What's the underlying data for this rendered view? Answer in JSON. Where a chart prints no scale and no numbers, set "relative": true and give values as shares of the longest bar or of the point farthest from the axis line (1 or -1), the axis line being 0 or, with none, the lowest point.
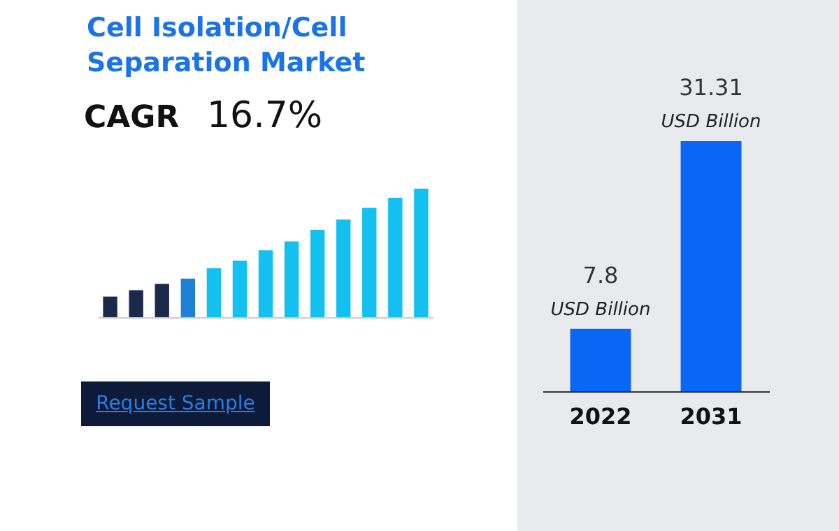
{
  "chart_data": [
    {
      "type": "bar",
      "title": "Cell Isolation/Cell Separation Market",
      "relative": true,
      "categories": [
        null,
        null,
        null,
        null,
        null,
        null,
        null,
        null,
        null,
        null,
        null,
        null,
        null
      ],
      "values": [
        0.16,
        0.21,
        0.26,
        0.3,
        0.38,
        0.44,
        0.52,
        0.59,
        0.68,
        0.76,
        0.85,
        0.93,
        1
      ],
      "colors": [
        "#1c2a4a",
        "#1c2a4a",
        "#1c2a4a",
        "#1e7fd6",
        "#14c0f0",
        "#14c0f0",
        "#14c0f0",
        "#14c0f0",
        "#14c0f0",
        "#14c0f0",
        "#14c0f0",
        "#14c0f0",
        "#14c0f0"
      ],
      "annotations": [
        "CAGR",
        "16.7%",
        "Request Sample"
      ]
    },
    {
      "type": "bar",
      "categories": [
        "2022",
        "2031"
      ],
      "values": [
        7.8,
        31.31
      ],
      "color": "#0a66f5",
      "value_labels": [
        "7.8",
        "31.31"
      ],
      "annotations": [
        {
          "text": "USD Billion",
          "x": "2022",
          "y": 7.8
        },
        {
          "text": "USD Billion",
          "x": "2031",
          "y": 31.31
        }
      ]
    }
  ]
}
